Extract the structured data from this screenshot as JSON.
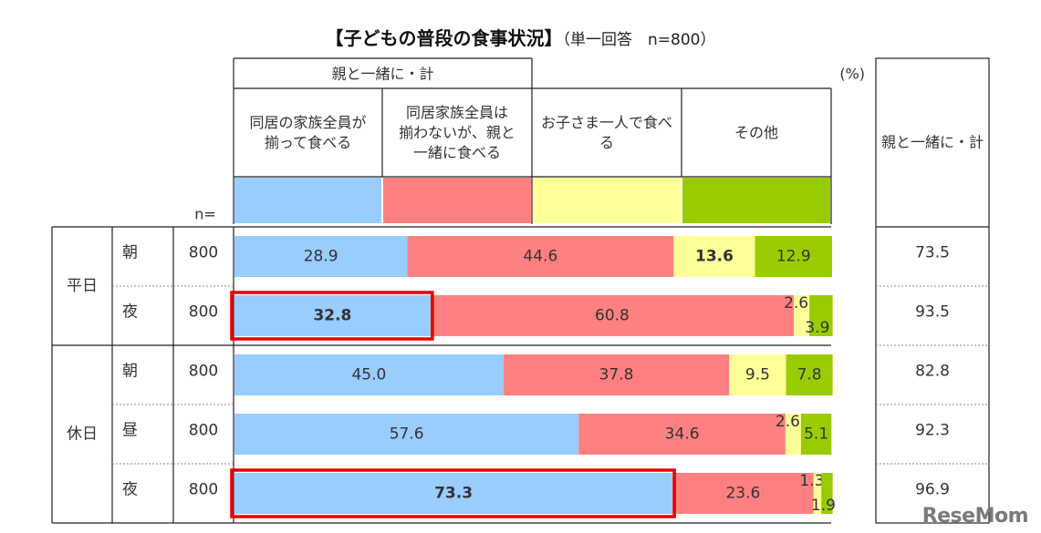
{
  "title": {
    "main": "【子どもの普段の食事状況】",
    "sub": "（単一回答　n=800）"
  },
  "header": {
    "group_label": "親と一緒に・計",
    "unit": "(%)",
    "n_label": "n=",
    "total_label": "親と一緒に・計",
    "categories": [
      "同居の家族全員が揃って食べる",
      "同居家族全員は揃わないが、親と一緒に食べる",
      "お子さま一人で食べる",
      "その他"
    ],
    "category_lines": [
      [
        "同居の家族全員が",
        "揃って食べる"
      ],
      [
        "同居家族全員は",
        "揃わないが、親と",
        "一緒に食べる"
      ],
      [
        "お子さま一人で食べ",
        "る"
      ],
      [
        "その他"
      ]
    ]
  },
  "colors": {
    "series": [
      "#99ccff",
      "#ff8080",
      "#ffff99",
      "#99cc00"
    ],
    "highlight": "#e60000"
  },
  "chart_data": {
    "type": "bar",
    "orientation": "horizontal",
    "stacked": true,
    "xlim": [
      0,
      100
    ],
    "groups": [
      {
        "label": "平日",
        "rows": [
          0,
          1
        ]
      },
      {
        "label": "休日",
        "rows": [
          2,
          3,
          4
        ]
      }
    ],
    "rows": [
      {
        "sub": "朝",
        "n": "800",
        "values": [
          28.9,
          44.6,
          13.6,
          12.9
        ],
        "labels": [
          "28.9",
          "44.6",
          "13.6",
          "12.9"
        ],
        "bold": [
          false,
          false,
          true,
          false
        ],
        "total": "73.5",
        "highlight": false
      },
      {
        "sub": "夜",
        "n": "800",
        "values": [
          32.8,
          60.8,
          2.6,
          3.9
        ],
        "labels": [
          "32.8",
          "60.8",
          "2.6",
          "3.9"
        ],
        "bold": [
          true,
          false,
          false,
          false
        ],
        "total": "93.5",
        "highlight": true
      },
      {
        "sub": "朝",
        "n": "800",
        "values": [
          45.0,
          37.8,
          9.5,
          7.8
        ],
        "labels": [
          "45.0",
          "37.8",
          "9.5",
          "7.8"
        ],
        "bold": [
          false,
          false,
          false,
          false
        ],
        "total": "82.8",
        "highlight": false
      },
      {
        "sub": "昼",
        "n": "800",
        "values": [
          57.6,
          34.6,
          2.6,
          5.1
        ],
        "labels": [
          "57.6",
          "34.6",
          "2.6",
          "5.1"
        ],
        "bold": [
          false,
          false,
          false,
          false
        ],
        "total": "92.3",
        "highlight": false
      },
      {
        "sub": "夜",
        "n": "800",
        "values": [
          73.3,
          23.6,
          1.3,
          1.9
        ],
        "labels": [
          "73.3",
          "23.6",
          "1.3",
          "1.9"
        ],
        "bold": [
          true,
          false,
          false,
          false
        ],
        "total": "96.9",
        "highlight": true
      }
    ]
  },
  "watermark": "ReseMom"
}
